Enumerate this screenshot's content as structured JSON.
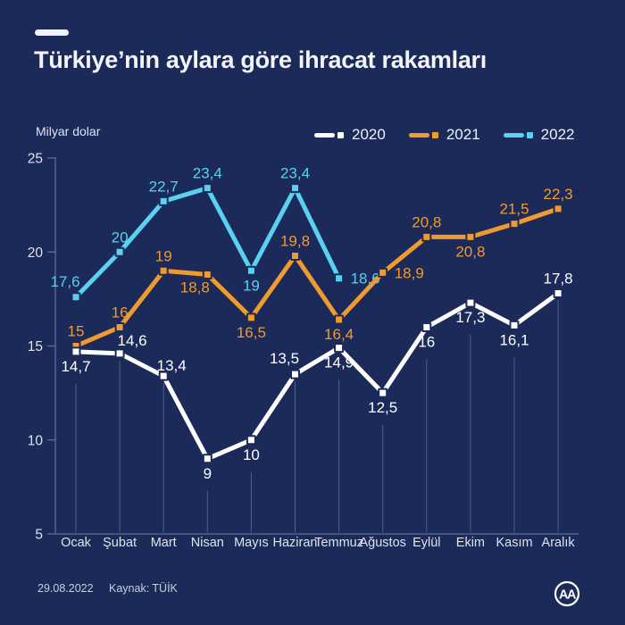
{
  "page": {
    "background": "#1b2a58"
  },
  "chart_data": {
    "type": "line",
    "title": "Türkiye’nin aylara göre ihracat rakamları",
    "unit_label": "Milyar dolar",
    "categories": [
      "Ocak",
      "Şubat",
      "Mart",
      "Nisan",
      "Mayıs",
      "Haziran",
      "Temmuz",
      "Ağustos",
      "Eylül",
      "Ekim",
      "Kasım",
      "Aralık"
    ],
    "ylim": [
      5,
      25
    ],
    "yticks": [
      25,
      20,
      15,
      10,
      5
    ],
    "grid": "vertical drop line per month",
    "legend_position": "top-right",
    "decimal_separator": ",",
    "axis_color": "#5f6c95",
    "tick_label_color": "#dfe3ee",
    "series": [
      {
        "name": "2020",
        "color": "#ffffff",
        "values": [
          14.7,
          14.6,
          13.4,
          9,
          10,
          13.5,
          14.9,
          12.5,
          16,
          17.3,
          16.1,
          17.8
        ],
        "label_pos": [
          "below",
          "above-right",
          "right-above",
          "below",
          "below",
          "above-left",
          "below",
          "below",
          "below",
          "below",
          "below",
          "above"
        ]
      },
      {
        "name": "2021",
        "color": "#f09b30",
        "values": [
          15,
          16,
          19,
          18.8,
          16.5,
          19.8,
          16.4,
          18.9,
          20.8,
          20.8,
          21.5,
          22.3
        ],
        "label_pos": [
          "above",
          "above",
          "above",
          "below-left",
          "below",
          "above",
          "below",
          "right",
          "above",
          "below",
          "above",
          "above"
        ]
      },
      {
        "name": "2022",
        "color": "#5ad1f0",
        "values": [
          17.6,
          20,
          22.7,
          23.4,
          19,
          23.4,
          18.6
        ],
        "label_pos": [
          "above-left",
          "above",
          "above",
          "above",
          "below",
          "above",
          "right"
        ]
      }
    ]
  },
  "footer": {
    "date": "29.08.2022",
    "source": "Kaynak: TÜİK",
    "agency_logo": "AA"
  }
}
